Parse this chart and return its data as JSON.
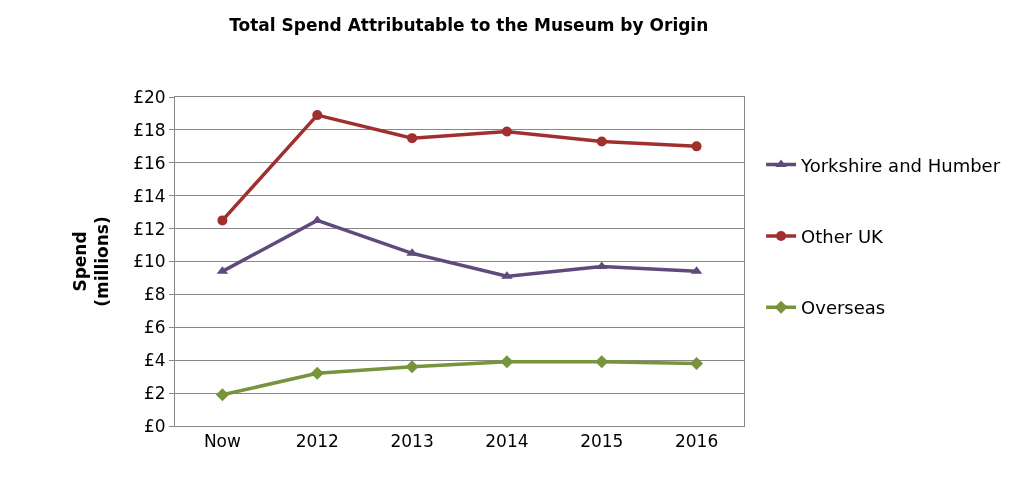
{
  "chart_data": {
    "type": "line",
    "title": "Total Spend Attributable to the Museum by Origin",
    "ylabel": "Spend (millions)",
    "categories": [
      "Now",
      "2012",
      "2013",
      "2014",
      "2015",
      "2016"
    ],
    "series": [
      {
        "name": "Yorkshire and Humber",
        "color": "#604a7b",
        "marker": "triangle",
        "values": [
          9.4,
          12.5,
          10.5,
          9.1,
          9.7,
          9.4
        ]
      },
      {
        "name": "Other UK",
        "color": "#a0302d",
        "marker": "circle",
        "values": [
          12.5,
          18.9,
          17.5,
          17.9,
          17.3,
          17.0
        ]
      },
      {
        "name": "Overseas",
        "color": "#77933c",
        "marker": "diamond",
        "values": [
          1.9,
          3.2,
          3.6,
          3.9,
          3.9,
          3.8
        ]
      }
    ],
    "ylim": [
      0,
      20
    ],
    "yticks": [
      {
        "value": 0,
        "label": "£0"
      },
      {
        "value": 2,
        "label": "£2"
      },
      {
        "value": 4,
        "label": "£4"
      },
      {
        "value": 6,
        "label": "£6"
      },
      {
        "value": 8,
        "label": "£8"
      },
      {
        "value": 10,
        "label": "£10"
      },
      {
        "value": 12,
        "label": "£12"
      },
      {
        "value": 14,
        "label": "£14"
      },
      {
        "value": 16,
        "label": "£16"
      },
      {
        "value": 18,
        "label": "£18"
      },
      {
        "value": 20,
        "label": "£20"
      }
    ],
    "grid": "y",
    "legend": "right",
    "line_style": "solid"
  }
}
